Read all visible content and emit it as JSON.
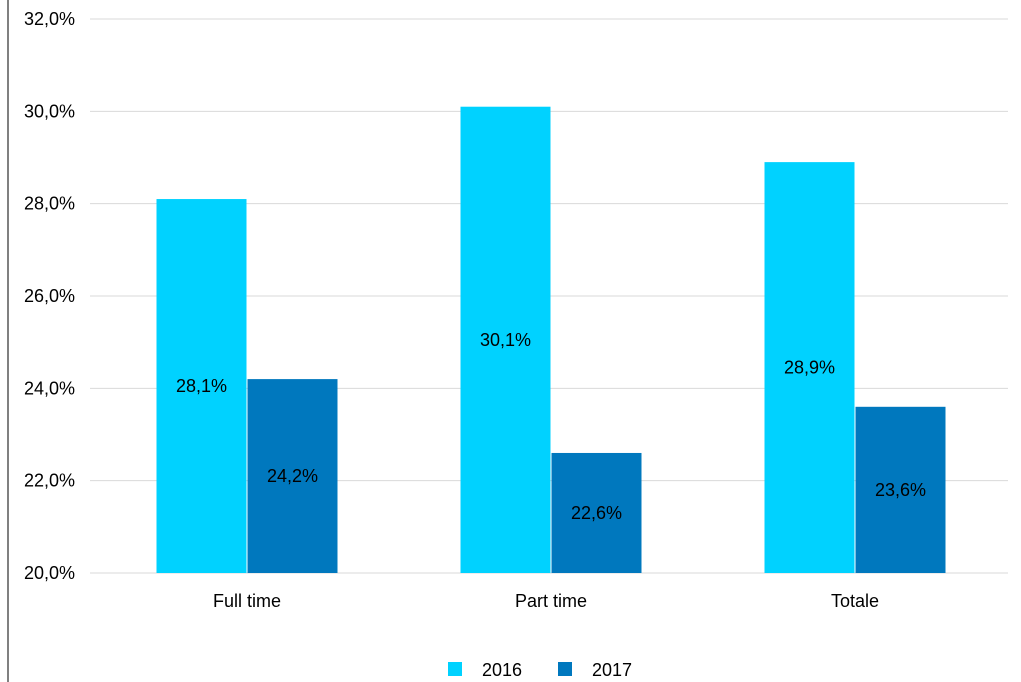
{
  "chart_data": {
    "type": "bar",
    "categories": [
      "Full time",
      "Part time",
      "Totale"
    ],
    "series": [
      {
        "name": "2016",
        "values": [
          28.1,
          30.1,
          28.9
        ],
        "color": "#00d2ff",
        "labels": [
          "28,1%",
          "30,1%",
          "28,9%"
        ]
      },
      {
        "name": "2017",
        "values": [
          24.2,
          22.6,
          23.6
        ],
        "color": "#0078be",
        "labels": [
          "24,2%",
          "22,6%",
          "23,6%"
        ]
      }
    ],
    "ylim": [
      20,
      32
    ],
    "yticks": [
      20,
      22,
      24,
      26,
      28,
      30,
      32
    ],
    "ytick_labels": [
      "20,0%",
      "22,0%",
      "24,0%",
      "26,0%",
      "28,0%",
      "30,0%",
      "32,0%"
    ],
    "title": "",
    "xlabel": "",
    "ylabel": "",
    "grid": true,
    "legend_position": "bottom-center",
    "grid_color": "#d9d9d9"
  }
}
